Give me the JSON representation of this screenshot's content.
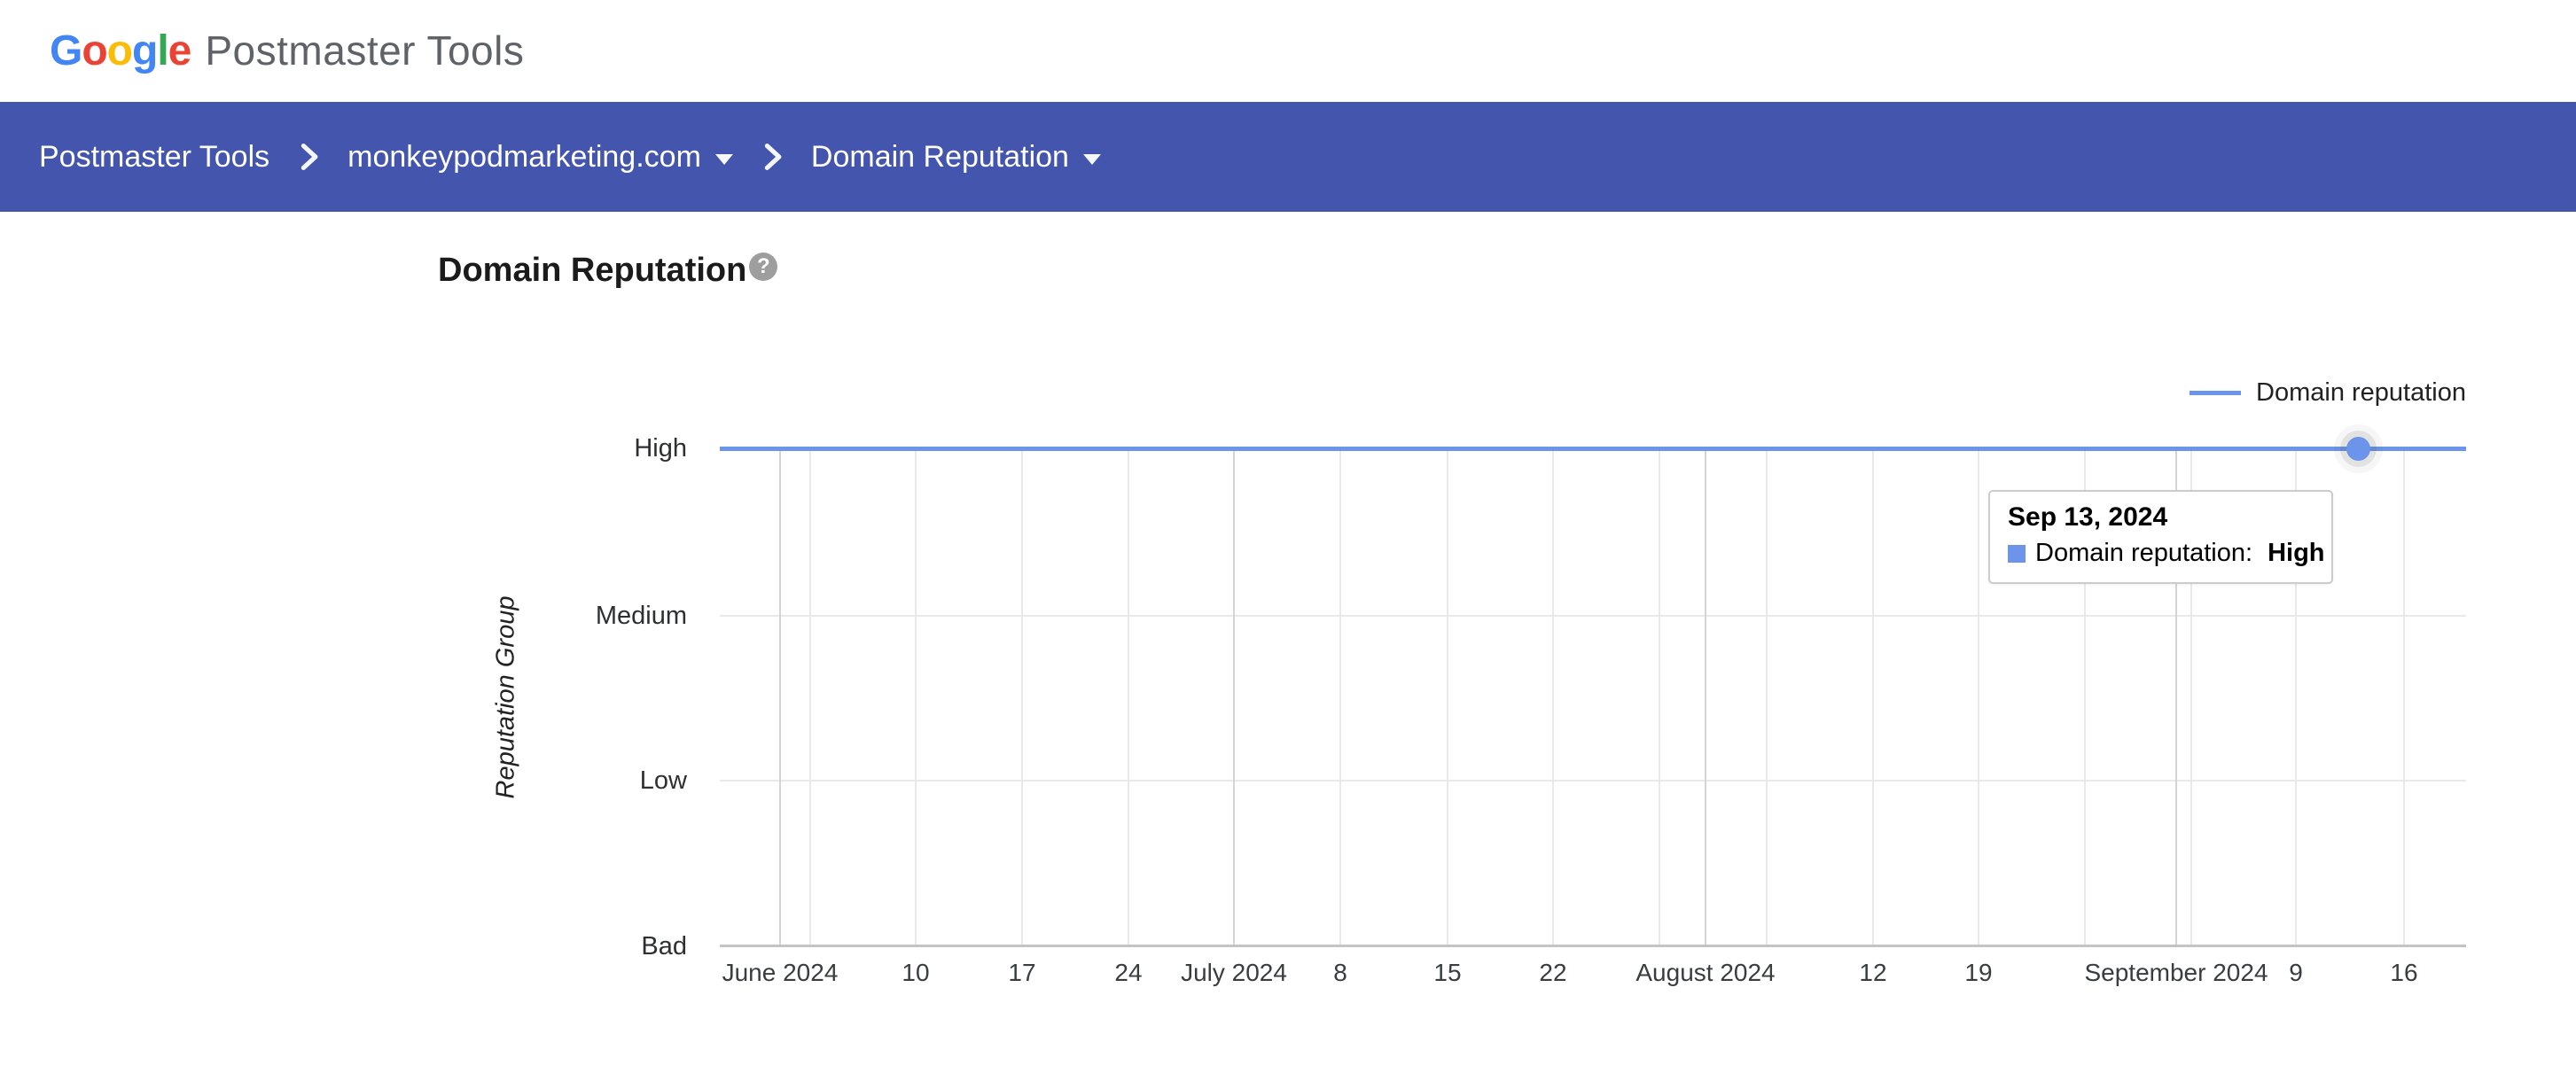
{
  "colors": {
    "navbar": "#4355AD",
    "line_blue": "#6B94EA",
    "google_blue": "#4285F4",
    "google_red": "#EA4335",
    "google_yellow": "#FBBC05",
    "google_green": "#34A853",
    "logo_gray": "#5F6368",
    "grid_minor": "#E9E9E9",
    "grid_major": "#D4D4D4",
    "axis_baseline": "#C4C4C4",
    "tooltip_border": "#CCCCCC",
    "help_icon_gray": "#9E9E9E"
  },
  "header": {
    "logo_letters": [
      {
        "ch": "G"
      },
      {
        "ch": "o"
      },
      {
        "ch": "o"
      },
      {
        "ch": "g"
      },
      {
        "ch": "l"
      },
      {
        "ch": "e"
      }
    ],
    "logo_product": "Postmaster Tools"
  },
  "breadcrumb": {
    "items": [
      {
        "label": "Postmaster Tools",
        "has_dropdown": false
      },
      {
        "label": "monkeypodmarketing.com",
        "has_dropdown": true
      },
      {
        "label": "Domain Reputation",
        "has_dropdown": true
      }
    ]
  },
  "page": {
    "title": "Domain Reputation",
    "help_glyph": "?"
  },
  "tooltip": {
    "date": "Sep 13, 2024",
    "series_label": "Domain reputation: ",
    "value": "High"
  },
  "chart_data": {
    "type": "line",
    "title": "Domain Reputation",
    "xlabel": "",
    "ylabel": "Reputation Group",
    "y_ticks": [
      "High",
      "Medium",
      "Low",
      "Bad"
    ],
    "x_ticks": [
      "June 2024",
      "10",
      "17",
      "24",
      "July 2024",
      "8",
      "15",
      "22",
      "August 2024",
      "12",
      "19",
      "September 2024",
      "9",
      "16"
    ],
    "series": [
      {
        "name": "Domain reputation",
        "color": "#6B94EA",
        "values": "High — flat line at the High level across the entire visible range (June 2024 through mid-September 2024)"
      }
    ],
    "selected_point": {
      "date": "Sep 13, 2024",
      "series": "Domain reputation",
      "value": "High"
    },
    "legend_position": "top-right",
    "grid": true
  }
}
